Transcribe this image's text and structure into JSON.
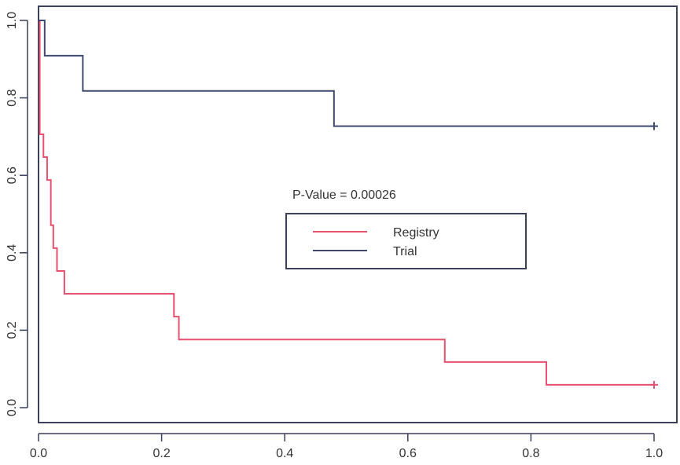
{
  "chart_data": {
    "type": "line",
    "title": "",
    "xlabel": "",
    "ylabel": "",
    "xlim": [
      0,
      1.0
    ],
    "ylim": [
      0,
      1.0
    ],
    "x_ticks": [
      "0.0",
      "0.2",
      "0.4",
      "0.6",
      "0.8",
      "1.0"
    ],
    "y_ticks": [
      "0.0",
      "0.2",
      "0.4",
      "0.6",
      "0.8",
      "1.0"
    ],
    "annotation": "P-Value =  0.00026",
    "legend_position": "center-right",
    "grid": false,
    "series": [
      {
        "name": "Registry",
        "color": "#e8506f",
        "step": true,
        "x": [
          0,
          0.002,
          0.008,
          0.014,
          0.02,
          0.024,
          0.03,
          0.042,
          0.22,
          0.228,
          0.66,
          0.825,
          1.0
        ],
        "y": [
          1.0,
          0.706,
          0.647,
          0.588,
          0.471,
          0.412,
          0.353,
          0.294,
          0.235,
          0.176,
          0.118,
          0.059,
          0.059
        ],
        "censor_x": [
          1.0
        ],
        "censor_y": [
          0.059
        ]
      },
      {
        "name": "Trial",
        "color": "#3f4a6e",
        "step": true,
        "x": [
          0,
          0.01,
          0.072,
          0.48,
          1.0
        ],
        "y": [
          1.0,
          0.909,
          0.818,
          0.727,
          0.727
        ],
        "censor_x": [
          1.0
        ],
        "censor_y": [
          0.727
        ]
      }
    ]
  }
}
